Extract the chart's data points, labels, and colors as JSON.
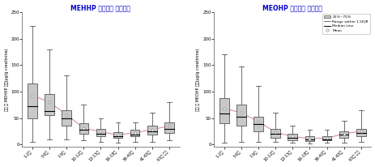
{
  "title_left": "MEHHP 일반인구 노출수준",
  "title_right": "MEOHP 일반인구 노출수준",
  "ylabel_left": "소변 중 MEHHP 농도(μg/g creatinine)",
  "ylabel_right": "소변 중 MEOHP 농도(μg/g creatinine)",
  "title_color": "#0000cc",
  "categories": [
    "1-2세",
    "3-6세",
    "7-9세",
    "10-12세",
    "13-15세",
    "16-18세",
    "39-40세",
    "41-65세",
    "65세 이상"
  ],
  "mehhp": {
    "q1": [
      50,
      55,
      35,
      20,
      15,
      12,
      15,
      18,
      22
    ],
    "median": [
      72,
      63,
      50,
      27,
      20,
      15,
      18,
      25,
      30
    ],
    "q3": [
      115,
      95,
      65,
      40,
      30,
      23,
      27,
      35,
      42
    ],
    "whisker_low": [
      5,
      10,
      10,
      8,
      5,
      3,
      5,
      5,
      8
    ],
    "whisker_high": [
      225,
      180,
      130,
      75,
      50,
      42,
      42,
      60,
      80
    ],
    "mean": [
      93,
      80,
      56,
      31,
      24,
      18,
      22,
      28,
      35
    ]
  },
  "meohp": {
    "q1": [
      40,
      35,
      25,
      13,
      8,
      7,
      8,
      13,
      15
    ],
    "median": [
      58,
      52,
      38,
      20,
      13,
      10,
      10,
      18,
      22
    ],
    "q3": [
      88,
      75,
      52,
      30,
      20,
      15,
      16,
      25,
      30
    ],
    "whisker_low": [
      3,
      5,
      5,
      5,
      3,
      2,
      3,
      3,
      5
    ],
    "whisker_high": [
      170,
      148,
      110,
      60,
      35,
      28,
      28,
      45,
      65
    ],
    "mean": [
      68,
      60,
      43,
      23,
      15,
      11,
      12,
      20,
      25
    ]
  },
  "mean_line_color": "#cc7777",
  "box_facecolor": "#c8c8c8",
  "box_edgecolor": "#555555",
  "whisker_color": "#555555",
  "median_color": "#000000",
  "mean_marker_color": "#888888",
  "ylim": [
    -5,
    250
  ],
  "yticks": [
    0,
    50,
    100,
    150,
    200,
    250
  ],
  "legend_labels": [
    "25%~75%",
    "Range within 1.5IQR",
    "Median Line",
    "Mean"
  ],
  "background_color": "#ffffff"
}
